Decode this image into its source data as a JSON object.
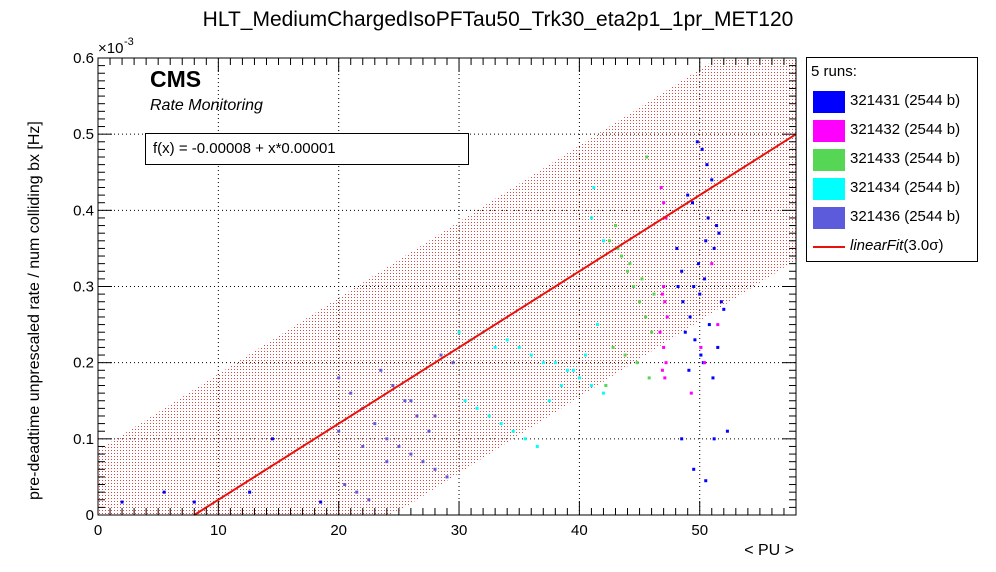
{
  "chart_data": {
    "type": "scatter",
    "title": "HLT_MediumChargedIsoPFTau50_Trk30_eta2p1_1pr_MET120",
    "xlabel": "< PU >",
    "ylabel": "pre-deadtime unprescaled rate / num colliding bx [Hz]",
    "y_exponent_label": "×10",
    "y_exponent_power": "-3",
    "xlim": [
      0,
      58
    ],
    "ylim": [
      0,
      0.0006
    ],
    "x_ticks": [
      0,
      10,
      20,
      30,
      40,
      50
    ],
    "y_ticks": [
      0,
      0.0001,
      0.0002,
      0.0003,
      0.0004,
      0.0005,
      0.0006
    ],
    "y_tick_labels": [
      "0",
      "0.1",
      "0.2",
      "0.3",
      "0.4",
      "0.5",
      "0.6"
    ],
    "grid": true,
    "legend_header": "5 runs:",
    "legend_position": "right-outside-top",
    "series": [
      {
        "name": "321431 (2544 b)",
        "color": "#0000ff",
        "x": [
          49.8,
          50.2,
          50.6,
          51.0,
          51.4,
          49.0,
          50.5,
          51.2,
          48.5,
          49.5,
          50.0,
          51.8,
          49.2,
          50.8,
          48.8,
          49.6,
          51.5,
          50.3,
          48.2,
          52.0,
          50.1,
          49.1,
          51.1,
          48.6,
          49.9,
          50.7,
          51.6,
          49.4,
          48.1,
          50.4,
          2,
          5.5,
          8,
          12.6,
          14.5,
          18.5,
          48.5,
          49.5,
          50.5,
          51.2,
          52.3
        ],
        "y": [
          0.00049,
          0.00048,
          0.00046,
          0.00044,
          0.00038,
          0.00042,
          0.00036,
          0.00035,
          0.00032,
          0.0003,
          0.00029,
          0.00028,
          0.00026,
          0.00025,
          0.00024,
          0.00023,
          0.00022,
          0.0002,
          0.0003,
          0.00027,
          0.00021,
          0.00019,
          0.00018,
          0.00028,
          0.00033,
          0.00039,
          0.00037,
          0.00041,
          0.00035,
          0.00031,
          1.7e-05,
          3e-05,
          1.7e-05,
          3e-05,
          0.0001,
          1.7e-05,
          0.0001,
          6e-05,
          4.5e-05,
          0.0001,
          0.00011
        ]
      },
      {
        "name": "321432 (2544 b)",
        "color": "#ff00ff",
        "x": [
          46.8,
          47.0,
          47.2,
          47.0,
          46.9,
          47.1,
          47.3,
          46.7,
          47.0,
          47.2,
          46.9,
          47.1,
          49.3,
          50.1,
          51.5,
          51.0,
          50.4
        ],
        "y": [
          0.00043,
          0.00041,
          0.00039,
          0.0003,
          0.00029,
          0.00028,
          0.00026,
          0.00024,
          0.00022,
          0.0002,
          0.00019,
          0.00018,
          0.00016,
          0.00022,
          0.00025,
          0.00033,
          0.0002
        ]
      },
      {
        "name": "321433 (2544 b)",
        "color": "#55d655",
        "x": [
          42.5,
          43.0,
          43.5,
          44.0,
          44.5,
          45.0,
          45.5,
          46.0,
          42.8,
          43.8,
          44.8,
          45.8,
          42.2,
          43.2,
          44.2,
          45.2,
          46.2,
          45.6
        ],
        "y": [
          0.00036,
          0.00038,
          0.00034,
          0.00032,
          0.0003,
          0.00028,
          0.00026,
          0.00024,
          0.00022,
          0.00021,
          0.0002,
          0.00018,
          0.00017,
          0.00035,
          0.00033,
          0.00031,
          0.00029,
          0.00047
        ]
      },
      {
        "name": "321434 (2544 b)",
        "color": "#00ffff",
        "x": [
          30,
          31,
          32,
          33,
          34,
          35,
          36,
          37,
          38,
          39,
          40,
          41,
          42,
          30.5,
          31.5,
          32.5,
          33.5,
          34.5,
          35.5,
          36.5,
          37.5,
          38.5,
          39.5,
          40.5,
          41.5,
          41.2,
          41.0,
          42.0
        ],
        "y": [
          0.00024,
          0.00023,
          0.00024,
          0.00022,
          0.00023,
          0.00022,
          0.00021,
          0.0002,
          0.0002,
          0.00019,
          0.00018,
          0.00017,
          0.00016,
          0.00015,
          0.00014,
          0.00013,
          0.00012,
          0.00011,
          0.0001,
          9e-05,
          0.00015,
          0.00017,
          0.00019,
          0.00021,
          0.00025,
          0.00043,
          0.00039,
          0.00036
        ]
      },
      {
        "name": "321436 (2544 b)",
        "color": "#5b5bdc",
        "x": [
          20,
          21,
          22,
          23,
          24,
          25,
          26,
          27,
          28,
          29,
          20.5,
          21.5,
          22.5,
          23.5,
          24.5,
          25.5,
          26.5,
          27.5,
          28.5,
          29.5,
          20,
          22,
          24,
          26,
          28
        ],
        "y": [
          0.00018,
          0.00016,
          0.00014,
          0.00012,
          0.0001,
          9e-05,
          8e-05,
          7e-05,
          6e-05,
          5e-05,
          4e-05,
          3e-05,
          2e-05,
          0.00019,
          0.00017,
          0.00015,
          0.00013,
          0.00011,
          0.00021,
          0.0002,
          0.00011,
          9e-05,
          7e-05,
          0.00015,
          0.00013
        ]
      }
    ],
    "fit": {
      "name_prefix": "linearFit",
      "name_arg": "(3.0σ)",
      "color": "#e8120d",
      "intercept": -8e-05,
      "slope": 1e-05,
      "band_sigma_y": 0.000165
    },
    "fit_label": "f(x) = -0.00008 + x*0.00001",
    "annotations": {
      "experiment": "CMS",
      "subtitle": "Rate Monitoring"
    }
  }
}
